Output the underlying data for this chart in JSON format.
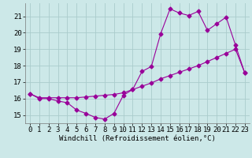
{
  "xlabel": "Windchill (Refroidissement éolien,°C)",
  "bg_color": "#cce8e8",
  "grid_color": "#aacccc",
  "line_color": "#990099",
  "xlim": [
    -0.5,
    23.5
  ],
  "ylim": [
    14.5,
    21.8
  ],
  "yticks": [
    15,
    16,
    17,
    18,
    19,
    20,
    21
  ],
  "xticks": [
    0,
    1,
    2,
    3,
    4,
    5,
    6,
    7,
    8,
    9,
    10,
    11,
    12,
    13,
    14,
    15,
    16,
    17,
    18,
    19,
    20,
    21,
    22,
    23
  ],
  "series1_x": [
    0,
    1,
    2,
    3,
    4,
    5,
    6,
    7,
    8,
    9,
    10,
    11,
    12,
    13,
    14,
    15,
    16,
    17,
    18,
    19,
    20,
    21,
    22,
    23
  ],
  "series1_y": [
    16.3,
    16.0,
    16.0,
    15.85,
    15.75,
    15.3,
    15.1,
    14.85,
    14.75,
    15.1,
    16.2,
    16.55,
    17.65,
    17.95,
    19.95,
    21.45,
    21.2,
    21.05,
    21.3,
    20.15,
    20.55,
    20.95,
    19.25,
    17.55
  ],
  "series2_x": [
    0,
    1,
    2,
    3,
    4,
    5,
    6,
    7,
    8,
    9,
    10,
    11,
    12,
    13,
    14,
    15,
    16,
    17,
    18,
    19,
    20,
    21,
    22,
    23
  ],
  "series2_y": [
    16.3,
    16.05,
    16.05,
    16.05,
    16.05,
    16.05,
    16.1,
    16.15,
    16.2,
    16.25,
    16.35,
    16.55,
    16.75,
    16.95,
    17.2,
    17.4,
    17.6,
    17.8,
    18.0,
    18.25,
    18.5,
    18.75,
    19.0,
    17.55
  ],
  "marker": "D",
  "marker_size": 2.5,
  "linewidth": 0.8,
  "axis_fontsize": 6.5,
  "tick_fontsize": 6.5
}
